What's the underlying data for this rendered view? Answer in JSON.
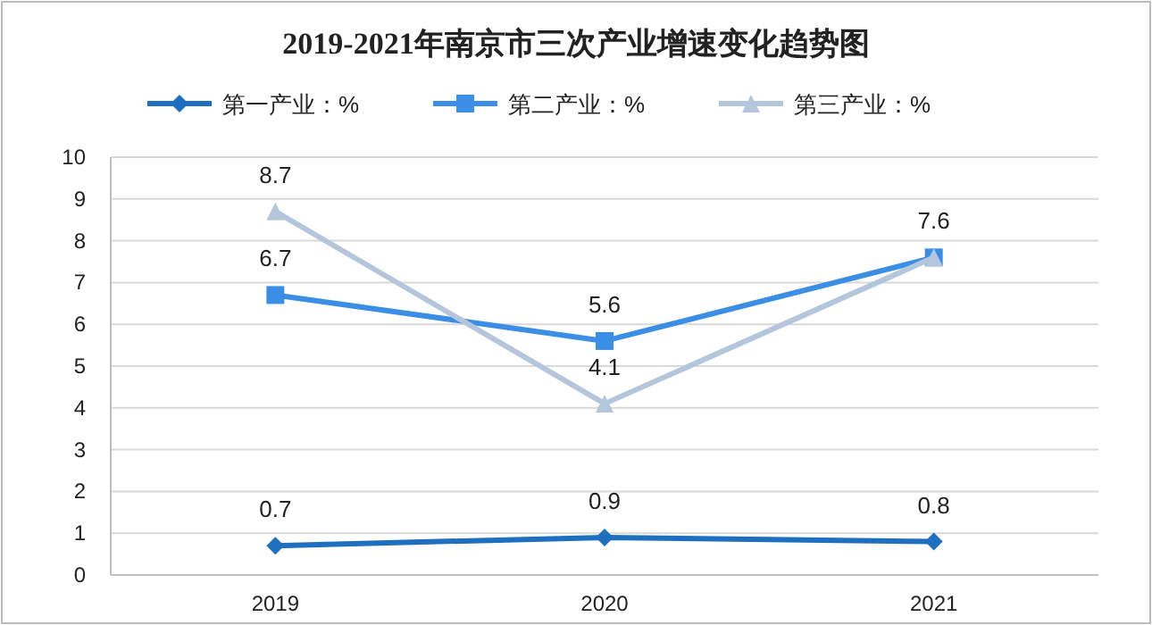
{
  "chart_data": {
    "type": "line",
    "title": "2019-2021年南京市三次产业增速变化趋势图",
    "categories": [
      "2019",
      "2020",
      "2021"
    ],
    "series": [
      {
        "name": "第一产业：%",
        "color": "#1f6fc0",
        "marker": "diamond",
        "values": [
          0.7,
          0.9,
          0.8
        ],
        "value_labels": [
          "0.7",
          "0.9",
          "0.8"
        ]
      },
      {
        "name": "第二产业：%",
        "color": "#3a8ee6",
        "marker": "square",
        "values": [
          6.7,
          5.6,
          7.6
        ],
        "value_labels": [
          "6.7",
          "5.6",
          "7.6"
        ]
      },
      {
        "name": "第三产业：%",
        "color": "#b3c6dc",
        "marker": "triangle",
        "values": [
          8.7,
          4.1,
          7.6
        ],
        "value_labels": [
          "8.7",
          "4.1",
          null
        ]
      }
    ],
    "ylim": [
      0,
      10
    ],
    "yticks": [
      0,
      1,
      2,
      3,
      4,
      5,
      6,
      7,
      8,
      9,
      10
    ],
    "grid": "y",
    "legend": "top",
    "line_style": "solid"
  }
}
